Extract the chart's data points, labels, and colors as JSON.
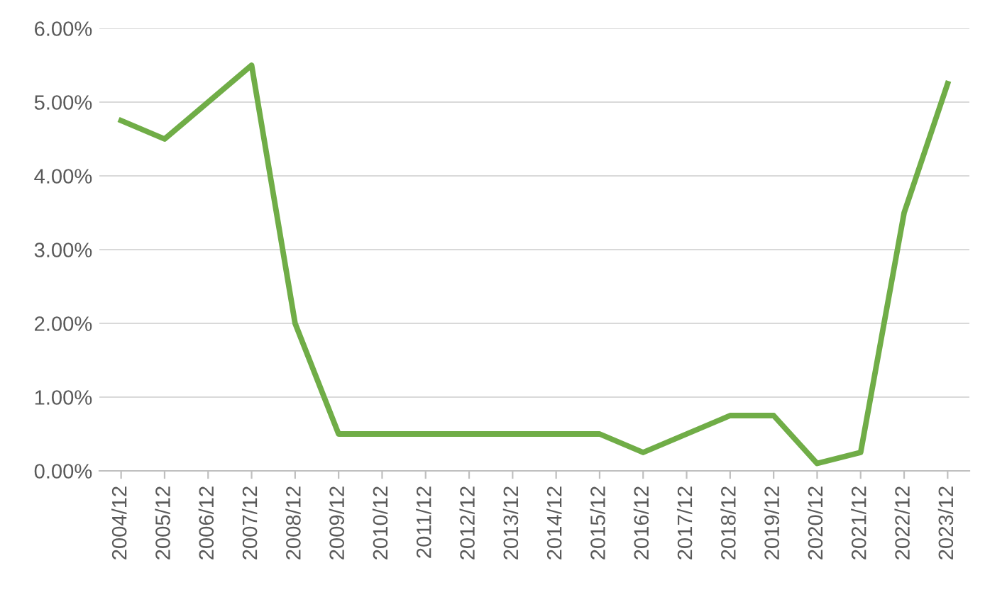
{
  "chart_data": {
    "type": "line",
    "categories": [
      "2004/12",
      "2005/12",
      "2006/12",
      "2007/12",
      "2008/12",
      "2009/12",
      "2010/12",
      "2011/12",
      "2012/12",
      "2013/12",
      "2014/12",
      "2015/12",
      "2016/12",
      "2017/12",
      "2018/12",
      "2019/12",
      "2020/12",
      "2021/12",
      "2022/12",
      "2023/12"
    ],
    "series": [
      {
        "color": "#70ad47",
        "values": [
          4.75,
          4.5,
          5.0,
          5.5,
          2.0,
          0.5,
          0.5,
          0.5,
          0.5,
          0.5,
          0.5,
          0.5,
          0.25,
          0.5,
          0.75,
          0.75,
          0.1,
          0.25,
          3.5,
          5.25
        ]
      }
    ],
    "ylim": [
      0,
      6
    ],
    "yticks": [
      {
        "value": 0,
        "label": "0.00%"
      },
      {
        "value": 1,
        "label": "1.00%"
      },
      {
        "value": 2,
        "label": "2.00%"
      },
      {
        "value": 3,
        "label": "3.00%"
      },
      {
        "value": 4,
        "label": "4.00%"
      },
      {
        "value": 5,
        "label": "5.00%"
      },
      {
        "value": 6,
        "label": "6.00%"
      }
    ],
    "grid": "y",
    "legend": false,
    "marker": "none",
    "line_style": "solid"
  }
}
